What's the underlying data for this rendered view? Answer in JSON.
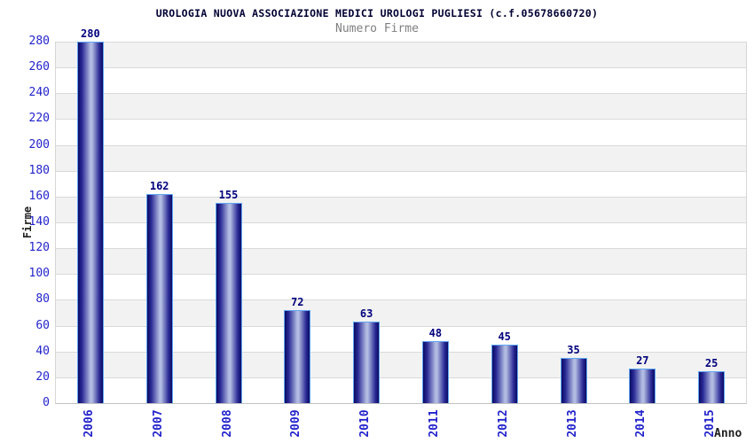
{
  "chart": {
    "title": "UROLOGIA NUOVA ASSOCIAZIONE MEDICI UROLOGI PUGLIESI (c.f.05678660720)",
    "subtitle": "Numero Firme",
    "ylabel": "Firme",
    "xlabel": "Anno"
  },
  "chart_data": {
    "type": "bar",
    "title": "UROLOGIA NUOVA ASSOCIAZIONE MEDICI UROLOGI PUGLIESI (c.f.05678660720)",
    "subtitle": "Numero Firme",
    "categories": [
      "2006",
      "2007",
      "2008",
      "2009",
      "2010",
      "2011",
      "2012",
      "2013",
      "2014",
      "2015"
    ],
    "values": [
      280,
      162,
      155,
      72,
      63,
      48,
      45,
      35,
      27,
      25
    ],
    "xlabel": "Anno",
    "ylabel": "Firme",
    "ylim": [
      0,
      280
    ],
    "ytick_step": 20,
    "grid": true,
    "legend_position": "none",
    "colors": {
      "title": "#000033",
      "subtitle": "#7f7f7f",
      "tick_label": "#2323cc",
      "value_label": "#00007d",
      "bar_dark": "#0b0b62",
      "bar_mid": "#2a2a96",
      "bar_light": "#b2bce2",
      "bar_border": "#5ea6f2",
      "band_gray": "#f2f2f2",
      "grid_line": "#d9d9d9"
    }
  }
}
